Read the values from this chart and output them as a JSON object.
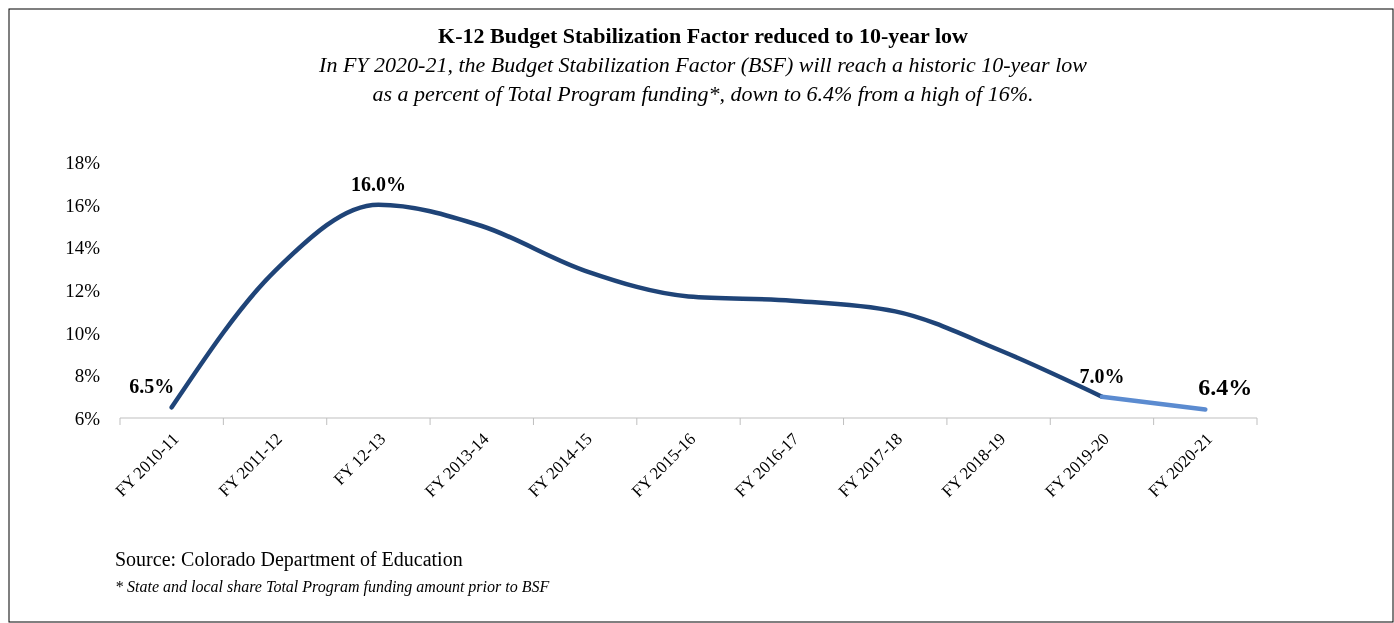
{
  "chart_data": {
    "type": "line",
    "title": "K-12 Budget Stabilization Factor reduced to 10-year low",
    "subtitle": "In FY 2020-21, the Budget Stabilization Factor (BSF) will reach a historic 10-year low as a percent of Total Program funding*, down to 6.4% from a high of 16%.",
    "categories": [
      "FY 2010-11",
      "FY 2011-12",
      "FY 12-13",
      "FY 2013-14",
      "FY 2014-15",
      "FY 2015-16",
      "FY 2016-17",
      "FY 2017-18",
      "FY 2018-19",
      "FY 2019-20",
      "FY 2020-21"
    ],
    "series": [
      {
        "color": "#1f4478",
        "values": [
          6.5,
          12.9,
          16.0,
          15.0,
          12.9,
          11.7,
          11.5,
          11.0,
          9.2,
          7.0,
          null
        ],
        "value_labels": [
          "6.5%",
          null,
          "16.0%",
          null,
          null,
          null,
          null,
          null,
          null,
          "7.0%",
          null
        ]
      },
      {
        "color": "#5b8bd0",
        "values": [
          null,
          null,
          null,
          null,
          null,
          null,
          null,
          null,
          null,
          7.0,
          6.4
        ],
        "value_labels": [
          null,
          null,
          null,
          null,
          null,
          null,
          null,
          null,
          null,
          null,
          "6.4%"
        ]
      }
    ],
    "ylim": [
      6,
      18
    ],
    "yticks": [
      {
        "value": 6,
        "label": "6%"
      },
      {
        "value": 8,
        "label": "8%"
      },
      {
        "value": 10,
        "label": "10%"
      },
      {
        "value": 12,
        "label": "12%"
      },
      {
        "value": 14,
        "label": "14%"
      },
      {
        "value": 16,
        "label": "16%"
      },
      {
        "value": 18,
        "label": "18%"
      }
    ],
    "grid": false,
    "marker": "none",
    "line_style": "solid",
    "annotations": [
      "Source: Colorado Department of Education",
      "* State and local share Total Program funding amount prior to BSF"
    ]
  }
}
